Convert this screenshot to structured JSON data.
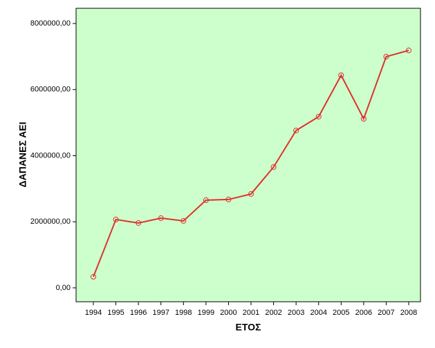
{
  "chart_data": {
    "type": "line",
    "x_label": "ΕΤΟΣ",
    "y_label": "ΔΑΠΑΝΕΣ ΑΕΙ",
    "categories": [
      "1994",
      "1995",
      "1996",
      "1997",
      "1998",
      "1999",
      "2000",
      "2001",
      "2002",
      "2003",
      "2004",
      "2005",
      "2006",
      "2007",
      "2008"
    ],
    "series": [
      {
        "color": "#e0302c",
        "values": [
          334000,
          2068000,
          1963000,
          2110000,
          2026000,
          2653000,
          2674000,
          2841000,
          3655000,
          4762000,
          5180000,
          6433000,
          5117000,
          6997000,
          7185000
        ]
      }
    ],
    "ylim": [
      -420000,
      8460000
    ],
    "yticks": [
      {
        "value": 0,
        "label": "0,00"
      },
      {
        "value": 2000000,
        "label": "2000000,00"
      },
      {
        "value": 4000000,
        "label": "4000000,00"
      },
      {
        "value": 6000000,
        "label": "6000000,00"
      },
      {
        "value": 8000000,
        "label": "8000000,00"
      }
    ],
    "background": "#ccffcc"
  }
}
